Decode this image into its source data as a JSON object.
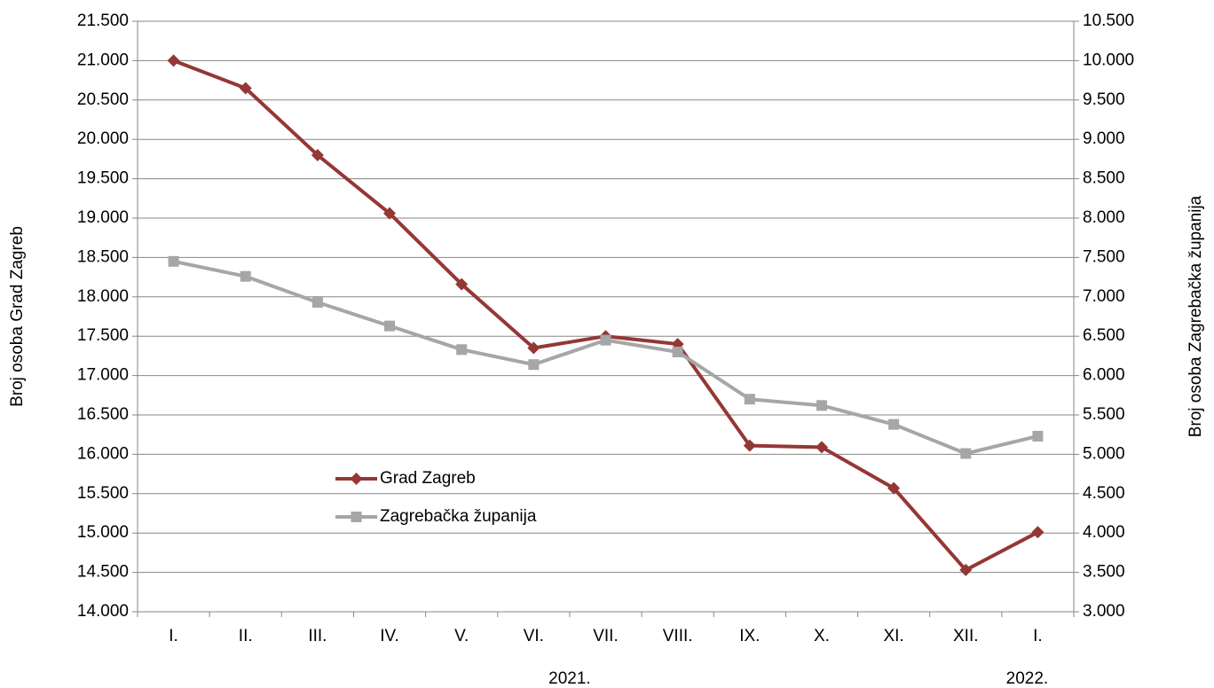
{
  "chart_data": {
    "type": "line",
    "categories": [
      "I.",
      "II.",
      "III.",
      "IV.",
      "V.",
      "VI.",
      "VII.",
      "VIII.",
      "IX.",
      "X.",
      "XI.",
      "XII.",
      "I."
    ],
    "x_group_labels": [
      "2021.",
      "2022."
    ],
    "y_label": "Broj osoba Grad Zagreb",
    "y2_label": "Broj osoba Zagrebačka županija",
    "series": [
      {
        "name": "Grad Zagreb",
        "color": "#953735",
        "marker": "diamond",
        "axis": "y",
        "values": [
          21000,
          20650,
          19800,
          19060,
          18160,
          17350,
          17500,
          17400,
          16110,
          16090,
          15570,
          14530,
          15010
        ]
      },
      {
        "name": "Zagrebačka županija",
        "color": "#a6a6a6",
        "marker": "square",
        "axis": "y2",
        "values": [
          7450,
          7260,
          6930,
          6630,
          6330,
          6140,
          6450,
          6300,
          5700,
          5620,
          5380,
          5010,
          5230
        ]
      }
    ],
    "ylim": [
      14000,
      21500
    ],
    "yticks": [
      {
        "value": 14000,
        "label": "14.000"
      },
      {
        "value": 14500,
        "label": "14.500"
      },
      {
        "value": 15000,
        "label": "15.000"
      },
      {
        "value": 15500,
        "label": "15.500"
      },
      {
        "value": 16000,
        "label": "16.000"
      },
      {
        "value": 16500,
        "label": "16.500"
      },
      {
        "value": 17000,
        "label": "17.000"
      },
      {
        "value": 17500,
        "label": "17.500"
      },
      {
        "value": 18000,
        "label": "18.000"
      },
      {
        "value": 18500,
        "label": "18.500"
      },
      {
        "value": 19000,
        "label": "19.000"
      },
      {
        "value": 19500,
        "label": "19.500"
      },
      {
        "value": 20000,
        "label": "20.000"
      },
      {
        "value": 20500,
        "label": "20.500"
      },
      {
        "value": 21000,
        "label": "21.000"
      },
      {
        "value": 21500,
        "label": "21.500"
      }
    ],
    "y2lim": [
      3000,
      10500
    ],
    "y2ticks": [
      {
        "value": 3000,
        "label": "3.000"
      },
      {
        "value": 3500,
        "label": "3.500"
      },
      {
        "value": 4000,
        "label": "4.000"
      },
      {
        "value": 4500,
        "label": "4.500"
      },
      {
        "value": 5000,
        "label": "5.000"
      },
      {
        "value": 5500,
        "label": "5.500"
      },
      {
        "value": 6000,
        "label": "6.000"
      },
      {
        "value": 6500,
        "label": "6.500"
      },
      {
        "value": 7000,
        "label": "7.000"
      },
      {
        "value": 7500,
        "label": "7.500"
      },
      {
        "value": 8000,
        "label": "8.000"
      },
      {
        "value": 8500,
        "label": "8.500"
      },
      {
        "value": 9000,
        "label": "9.000"
      },
      {
        "value": 9500,
        "label": "9.500"
      },
      {
        "value": 10000,
        "label": "10.000"
      },
      {
        "value": 10500,
        "label": "10.500"
      }
    ],
    "grid": true,
    "legend": "center-left"
  }
}
